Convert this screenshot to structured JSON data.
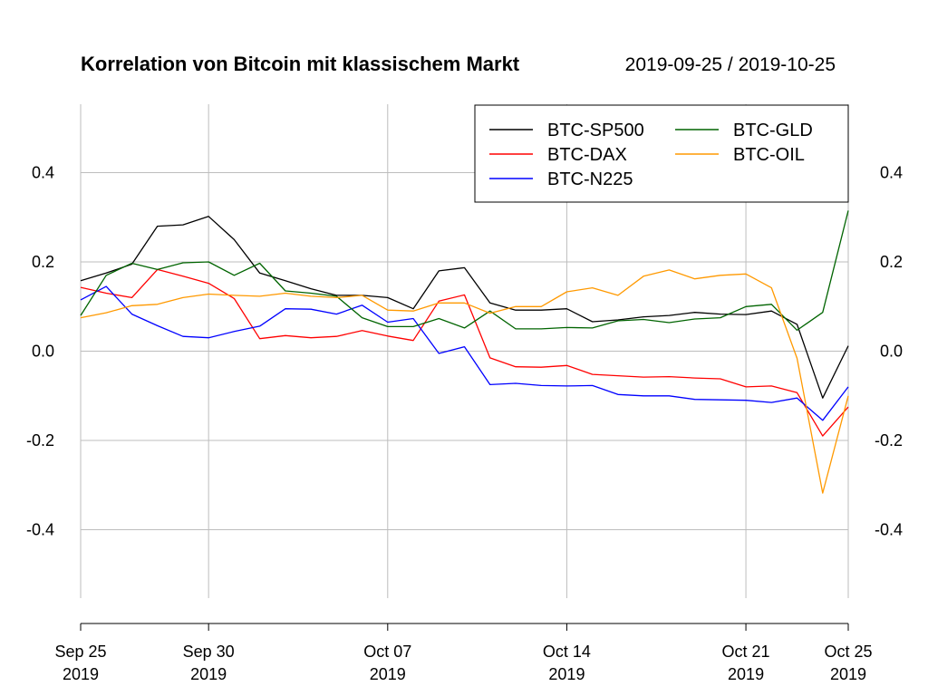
{
  "chart_data": {
    "type": "line",
    "title": "Korrelation von Bitcoin mit klassischem Markt",
    "date_range": "2019-09-25 / 2019-10-25",
    "xlabel": "",
    "ylabel": "",
    "x": [
      "2019-09-25",
      "2019-09-26",
      "2019-09-27",
      "2019-09-28",
      "2019-09-29",
      "2019-09-30",
      "2019-10-01",
      "2019-10-02",
      "2019-10-03",
      "2019-10-04",
      "2019-10-05",
      "2019-10-06",
      "2019-10-07",
      "2019-10-08",
      "2019-10-09",
      "2019-10-10",
      "2019-10-11",
      "2019-10-12",
      "2019-10-13",
      "2019-10-14",
      "2019-10-15",
      "2019-10-16",
      "2019-10-17",
      "2019-10-18",
      "2019-10-19",
      "2019-10-20",
      "2019-10-21",
      "2019-10-22",
      "2019-10-23",
      "2019-10-24",
      "2019-10-25"
    ],
    "xlim": [
      "2019-09-25",
      "2019-10-25"
    ],
    "x_ticks": [
      {
        "date": "2019-09-25",
        "line1": "Sep 25",
        "line2": "2019"
      },
      {
        "date": "2019-09-30",
        "line1": "Sep 30",
        "line2": "2019"
      },
      {
        "date": "2019-10-07",
        "line1": "Oct 07",
        "line2": "2019"
      },
      {
        "date": "2019-10-14",
        "line1": "Oct 14",
        "line2": "2019"
      },
      {
        "date": "2019-10-21",
        "line1": "Oct 21",
        "line2": "2019"
      },
      {
        "date": "2019-10-25",
        "line1": "Oct 25",
        "line2": "2019"
      }
    ],
    "ylim": [
      -0.55,
      0.55
    ],
    "y_ticks": [
      -0.4,
      -0.2,
      0.0,
      0.2,
      0.4
    ],
    "y_tick_labels": [
      "-0.4",
      "-0.2",
      "0.0",
      "0.2",
      "0.4"
    ],
    "grid": true,
    "legend_position": "top-right",
    "series": [
      {
        "name": "BTC-SP500",
        "color": "#000000",
        "values": [
          0.158,
          0.175,
          0.195,
          0.28,
          0.283,
          0.302,
          0.25,
          0.175,
          0.158,
          0.14,
          0.125,
          0.125,
          0.12,
          0.095,
          0.18,
          0.187,
          0.108,
          0.092,
          0.092,
          0.095,
          0.066,
          0.07,
          0.077,
          0.08,
          0.087,
          0.083,
          0.082,
          0.09,
          0.06,
          -0.105,
          0.012
        ]
      },
      {
        "name": "BTC-DAX",
        "color": "#ff0000",
        "values": [
          0.143,
          0.13,
          0.12,
          0.183,
          0.168,
          0.152,
          0.118,
          0.028,
          0.035,
          0.03,
          0.033,
          0.046,
          0.034,
          0.024,
          0.112,
          0.126,
          -0.015,
          -0.035,
          -0.036,
          -0.032,
          -0.052,
          -0.055,
          -0.058,
          -0.057,
          -0.06,
          -0.062,
          -0.08,
          -0.078,
          -0.093,
          -0.19,
          -0.125
        ]
      },
      {
        "name": "BTC-N225",
        "color": "#0000ff",
        "values": [
          0.115,
          0.145,
          0.083,
          0.057,
          0.033,
          0.03,
          0.044,
          0.056,
          0.095,
          0.094,
          0.083,
          0.103,
          0.065,
          0.073,
          -0.005,
          0.01,
          -0.075,
          -0.072,
          -0.077,
          -0.078,
          -0.077,
          -0.097,
          -0.1,
          -0.1,
          -0.108,
          -0.109,
          -0.11,
          -0.115,
          -0.105,
          -0.155,
          -0.08
        ]
      },
      {
        "name": "BTC-GLD",
        "color": "#006400",
        "values": [
          0.08,
          0.17,
          0.197,
          0.183,
          0.198,
          0.2,
          0.17,
          0.197,
          0.135,
          0.13,
          0.123,
          0.075,
          0.055,
          0.055,
          0.073,
          0.052,
          0.09,
          0.05,
          0.05,
          0.053,
          0.052,
          0.068,
          0.071,
          0.064,
          0.072,
          0.075,
          0.1,
          0.105,
          0.047,
          0.087,
          0.315
        ]
      },
      {
        "name": "BTC-OIL",
        "color": "#ff9900",
        "values": [
          0.075,
          0.086,
          0.102,
          0.105,
          0.12,
          0.128,
          0.125,
          0.123,
          0.13,
          0.123,
          0.12,
          0.125,
          0.092,
          0.09,
          0.108,
          0.108,
          0.085,
          0.1,
          0.1,
          0.133,
          0.142,
          0.125,
          0.168,
          0.182,
          0.162,
          0.17,
          0.173,
          0.142,
          -0.016,
          -0.318,
          -0.1
        ]
      }
    ]
  }
}
